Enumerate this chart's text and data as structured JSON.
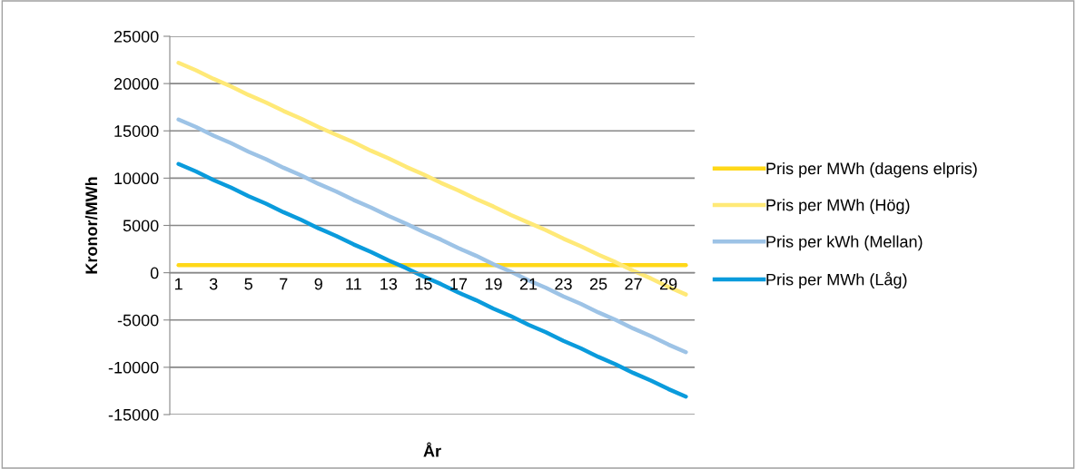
{
  "chart_data": {
    "type": "line",
    "xlabel": "År",
    "ylabel": "Kronor/MWh",
    "categories": [
      "1",
      null,
      "3",
      null,
      "5",
      null,
      "7",
      null,
      "9",
      null,
      "11",
      null,
      "13",
      null,
      "15",
      null,
      "17",
      null,
      "19",
      null,
      "21",
      null,
      "23",
      null,
      "25",
      null,
      "27",
      null,
      "29",
      null
    ],
    "series": [
      {
        "name": "Pris per MWh (dagens elpris)",
        "color": "#ffd818",
        "values": [
          800,
          800,
          800,
          800,
          800,
          800,
          800,
          800,
          800,
          800,
          800,
          800,
          800,
          800,
          800,
          800,
          800,
          800,
          800,
          800,
          800,
          800,
          800,
          800,
          800,
          800,
          800,
          800,
          800,
          800
        ]
      },
      {
        "name": "Pris per MWh (Hög)",
        "color": "#ffe977",
        "values": [
          22200,
          21400,
          20500,
          19700,
          18800,
          18000,
          17100,
          16300,
          15400,
          14600,
          13800,
          12900,
          12100,
          11200,
          10400,
          9500,
          8700,
          7800,
          7000,
          6100,
          5300,
          4500,
          3600,
          2800,
          1900,
          1100,
          200,
          -600,
          -1500,
          -2300
        ]
      },
      {
        "name": "Pris per kWh (Mellan)",
        "color": "#9dc3e6",
        "values": [
          16200,
          15400,
          14500,
          13700,
          12800,
          12000,
          11100,
          10300,
          9400,
          8600,
          7700,
          6900,
          6000,
          5200,
          4300,
          3500,
          2600,
          1800,
          900,
          100,
          -800,
          -1600,
          -2500,
          -3300,
          -4200,
          -5000,
          -5900,
          -6700,
          -7600,
          -8400
        ]
      },
      {
        "name": "Pris per MWh (Låg)",
        "color": "#0a9bdc",
        "values": [
          11500,
          10700,
          9800,
          9000,
          8100,
          7300,
          6400,
          5600,
          4700,
          3900,
          3000,
          2200,
          1300,
          500,
          -400,
          -1200,
          -2100,
          -2900,
          -3800,
          -4600,
          -5500,
          -6300,
          -7200,
          -8000,
          -8900,
          -9700,
          -10600,
          -11400,
          -12300,
          -13100
        ]
      }
    ],
    "ylim": [
      -15000,
      25000
    ],
    "yticks": [
      -15000,
      -10000,
      -5000,
      0,
      5000,
      10000,
      15000,
      20000,
      25000
    ],
    "grid": "y",
    "legend": "right",
    "marker": "none",
    "line_style": "solid"
  }
}
